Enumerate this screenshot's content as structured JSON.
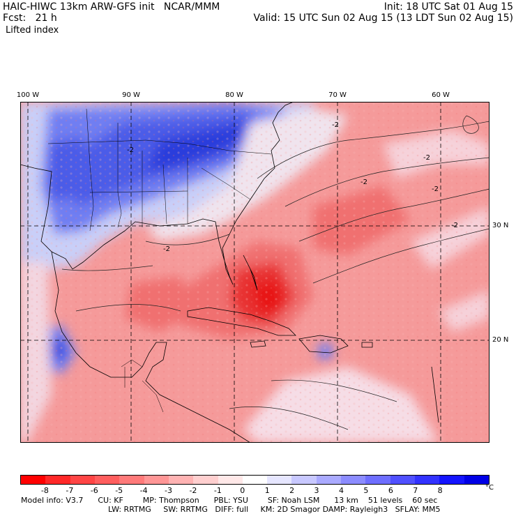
{
  "header": {
    "title_left": "HAIC-HIWC 13km ARW-GFS init   NCAR/MMM",
    "init": "Init: 18 UTC Sat 01 Aug 15",
    "fcst": "Fcst:   21 h",
    "valid": "Valid: 15 UTC Sun 02 Aug 15 (13 LDT Sun 02 Aug 15)",
    "field": "Lifted index"
  },
  "map": {
    "lon_labels": [
      "100 W",
      "90 W",
      "80 W",
      "70 W",
      "60 W"
    ],
    "lat_labels": [
      "30 N",
      "20 N"
    ],
    "contour_label": "-2",
    "colors": {
      "stable_strong": "#1a2fd8",
      "stable_mid": "#6f7ef2",
      "stable_weak": "#c9cff8",
      "neutral": "#f3eef3",
      "unstable_weak": "#f8b4b4",
      "unstable_mid": "#f07070",
      "unstable_strong": "#e81818",
      "border": "#000000"
    }
  },
  "colorbar": {
    "tick_labels": [
      "-8",
      "-7",
      "-6",
      "-5",
      "-4",
      "-3",
      "-2",
      "-1",
      "0",
      "1",
      "2",
      "3",
      "4",
      "5",
      "6",
      "7",
      "8"
    ],
    "unit": "°C",
    "colors": [
      "#ff0000",
      "#ff2828",
      "#ff4545",
      "#ff5e5e",
      "#ff7a7a",
      "#ff9696",
      "#ffb3b3",
      "#ffcfcf",
      "#ffe8e8",
      "#ffffff",
      "#e6e6ff",
      "#c8c8ff",
      "#aaaaff",
      "#8c8cff",
      "#6e6eff",
      "#5050ff",
      "#3232ff",
      "#1414ff",
      "#0000e6"
    ]
  },
  "model_info": {
    "line1": "Model info: V3.7      CU: KF        MP: Thompson      PBL: YSU        SF: Noah LSM      13 km    51 levels    60 sec",
    "line2": "LW: RRTMG     SW: RRTMG   DIFF: full     KM: 2D Smagor DAMP: Rayleigh3   SFLAY: MM5"
  }
}
